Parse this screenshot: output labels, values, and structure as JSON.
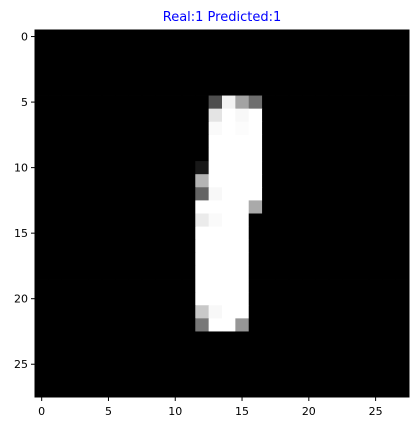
{
  "figure": {
    "title": "Real:1 Predicted:1",
    "title_color": "#0000ff"
  },
  "image": {
    "rows": 28,
    "cols": 28,
    "colormap": "gray",
    "x_ticks": [
      0,
      5,
      10,
      15,
      20,
      25
    ],
    "y_ticks": [
      0,
      5,
      10,
      15,
      20,
      25
    ],
    "pixels": [
      [
        0,
        0,
        0,
        0,
        0,
        0,
        0,
        0,
        0,
        0,
        0,
        0,
        0,
        0,
        0,
        0,
        0,
        0,
        0,
        0,
        0,
        0,
        0,
        0,
        0,
        0,
        0,
        0
      ],
      [
        0,
        0,
        0,
        0,
        0,
        0,
        0,
        0,
        0,
        0,
        0,
        0,
        0,
        0,
        0,
        0,
        0,
        0,
        0,
        0,
        0,
        0,
        0,
        0,
        0,
        0,
        0,
        0
      ],
      [
        0,
        0,
        0,
        0,
        0,
        0,
        0,
        0,
        0,
        0,
        0,
        0,
        0,
        0,
        0,
        0,
        0,
        0,
        0,
        0,
        0,
        0,
        0,
        0,
        0,
        0,
        0,
        0
      ],
      [
        0,
        0,
        0,
        0,
        0,
        0,
        0,
        0,
        0,
        0,
        0,
        0,
        0,
        0,
        0,
        0,
        0,
        0,
        0,
        0,
        0,
        0,
        0,
        0,
        0,
        0,
        0,
        0
      ],
      [
        0,
        0,
        0,
        0,
        0,
        0,
        0,
        0,
        0,
        0,
        0,
        0,
        0,
        0,
        0,
        0,
        0,
        0,
        0,
        0,
        0,
        0,
        0,
        0,
        0,
        0,
        0,
        0
      ],
      [
        0,
        0,
        0,
        0,
        0,
        0,
        0,
        0,
        0,
        0,
        0,
        0,
        0,
        78,
        242,
        163,
        110,
        0,
        0,
        0,
        0,
        0,
        0,
        0,
        0,
        0,
        0,
        0
      ],
      [
        0,
        0,
        0,
        0,
        0,
        0,
        0,
        0,
        0,
        0,
        0,
        0,
        0,
        228,
        255,
        248,
        255,
        0,
        0,
        0,
        0,
        0,
        0,
        0,
        0,
        0,
        0,
        0
      ],
      [
        0,
        0,
        0,
        0,
        0,
        0,
        0,
        0,
        0,
        0,
        0,
        0,
        0,
        250,
        255,
        252,
        255,
        0,
        0,
        0,
        0,
        0,
        0,
        0,
        0,
        0,
        0,
        0
      ],
      [
        0,
        0,
        0,
        0,
        0,
        0,
        0,
        0,
        0,
        0,
        0,
        0,
        0,
        255,
        255,
        255,
        255,
        0,
        0,
        0,
        0,
        0,
        0,
        0,
        0,
        0,
        0,
        0
      ],
      [
        0,
        0,
        0,
        0,
        0,
        0,
        0,
        0,
        0,
        0,
        0,
        0,
        0,
        255,
        255,
        255,
        255,
        0,
        0,
        0,
        0,
        0,
        0,
        0,
        0,
        0,
        0,
        0
      ],
      [
        0,
        0,
        0,
        0,
        0,
        0,
        0,
        0,
        0,
        0,
        0,
        0,
        24,
        255,
        255,
        255,
        255,
        0,
        0,
        0,
        0,
        0,
        0,
        0,
        0,
        0,
        0,
        0
      ],
      [
        0,
        0,
        0,
        0,
        0,
        0,
        0,
        0,
        0,
        0,
        0,
        0,
        180,
        255,
        255,
        255,
        255,
        0,
        0,
        0,
        0,
        0,
        0,
        0,
        0,
        0,
        0,
        0
      ],
      [
        0,
        0,
        0,
        0,
        0,
        0,
        0,
        0,
        0,
        0,
        0,
        0,
        100,
        248,
        255,
        255,
        255,
        0,
        0,
        0,
        0,
        0,
        0,
        0,
        0,
        0,
        0,
        0
      ],
      [
        0,
        0,
        0,
        0,
        0,
        0,
        0,
        0,
        0,
        0,
        0,
        0,
        255,
        255,
        255,
        255,
        170,
        0,
        0,
        0,
        0,
        0,
        0,
        0,
        0,
        0,
        0,
        0
      ],
      [
        0,
        0,
        0,
        0,
        0,
        0,
        0,
        0,
        0,
        0,
        0,
        0,
        235,
        250,
        255,
        255,
        0,
        0,
        0,
        0,
        0,
        0,
        0,
        0,
        0,
        0,
        0,
        0
      ],
      [
        0,
        0,
        0,
        0,
        0,
        0,
        0,
        0,
        0,
        0,
        0,
        0,
        255,
        255,
        255,
        255,
        0,
        0,
        0,
        0,
        0,
        0,
        0,
        0,
        0,
        0,
        0,
        0
      ],
      [
        0,
        0,
        0,
        0,
        0,
        0,
        0,
        0,
        0,
        0,
        0,
        0,
        255,
        255,
        255,
        255,
        0,
        0,
        0,
        0,
        0,
        0,
        0,
        0,
        0,
        0,
        0,
        0
      ],
      [
        0,
        0,
        0,
        0,
        0,
        0,
        0,
        0,
        0,
        0,
        0,
        0,
        255,
        255,
        255,
        255,
        0,
        0,
        0,
        0,
        0,
        0,
        0,
        0,
        0,
        0,
        0,
        0
      ],
      [
        0,
        0,
        0,
        0,
        0,
        0,
        0,
        0,
        0,
        0,
        0,
        0,
        255,
        255,
        255,
        255,
        0,
        0,
        0,
        0,
        0,
        0,
        0,
        0,
        0,
        0,
        0,
        0
      ],
      [
        0,
        0,
        0,
        0,
        0,
        0,
        0,
        0,
        0,
        0,
        0,
        0,
        255,
        255,
        255,
        255,
        0,
        0,
        0,
        0,
        0,
        0,
        0,
        0,
        0,
        0,
        0,
        0
      ],
      [
        0,
        0,
        0,
        0,
        0,
        0,
        0,
        0,
        0,
        0,
        0,
        0,
        255,
        255,
        255,
        255,
        0,
        0,
        0,
        0,
        0,
        0,
        0,
        0,
        0,
        0,
        0,
        0
      ],
      [
        0,
        0,
        0,
        0,
        0,
        0,
        0,
        0,
        0,
        0,
        0,
        0,
        200,
        248,
        255,
        255,
        0,
        0,
        0,
        0,
        0,
        0,
        0,
        0,
        0,
        0,
        0,
        0
      ],
      [
        0,
        0,
        0,
        0,
        0,
        0,
        0,
        0,
        0,
        0,
        0,
        0,
        120,
        255,
        255,
        150,
        0,
        0,
        0,
        0,
        0,
        0,
        0,
        0,
        0,
        0,
        0,
        0
      ],
      [
        0,
        0,
        0,
        0,
        0,
        0,
        0,
        0,
        0,
        0,
        0,
        0,
        0,
        0,
        0,
        0,
        0,
        0,
        0,
        0,
        0,
        0,
        0,
        0,
        0,
        0,
        0,
        0
      ],
      [
        0,
        0,
        0,
        0,
        0,
        0,
        0,
        0,
        0,
        0,
        0,
        0,
        0,
        0,
        0,
        0,
        0,
        0,
        0,
        0,
        0,
        0,
        0,
        0,
        0,
        0,
        0,
        0
      ],
      [
        0,
        0,
        0,
        0,
        0,
        0,
        0,
        0,
        0,
        0,
        0,
        0,
        0,
        0,
        0,
        0,
        0,
        0,
        0,
        0,
        0,
        0,
        0,
        0,
        0,
        0,
        0,
        0
      ],
      [
        0,
        0,
        0,
        0,
        0,
        0,
        0,
        0,
        0,
        0,
        0,
        0,
        0,
        0,
        0,
        0,
        0,
        0,
        0,
        0,
        0,
        0,
        0,
        0,
        0,
        0,
        0,
        0
      ],
      [
        0,
        0,
        0,
        0,
        0,
        0,
        0,
        0,
        0,
        0,
        0,
        0,
        0,
        0,
        0,
        0,
        0,
        0,
        0,
        0,
        0,
        0,
        0,
        0,
        0,
        0,
        0,
        0
      ]
    ]
  }
}
